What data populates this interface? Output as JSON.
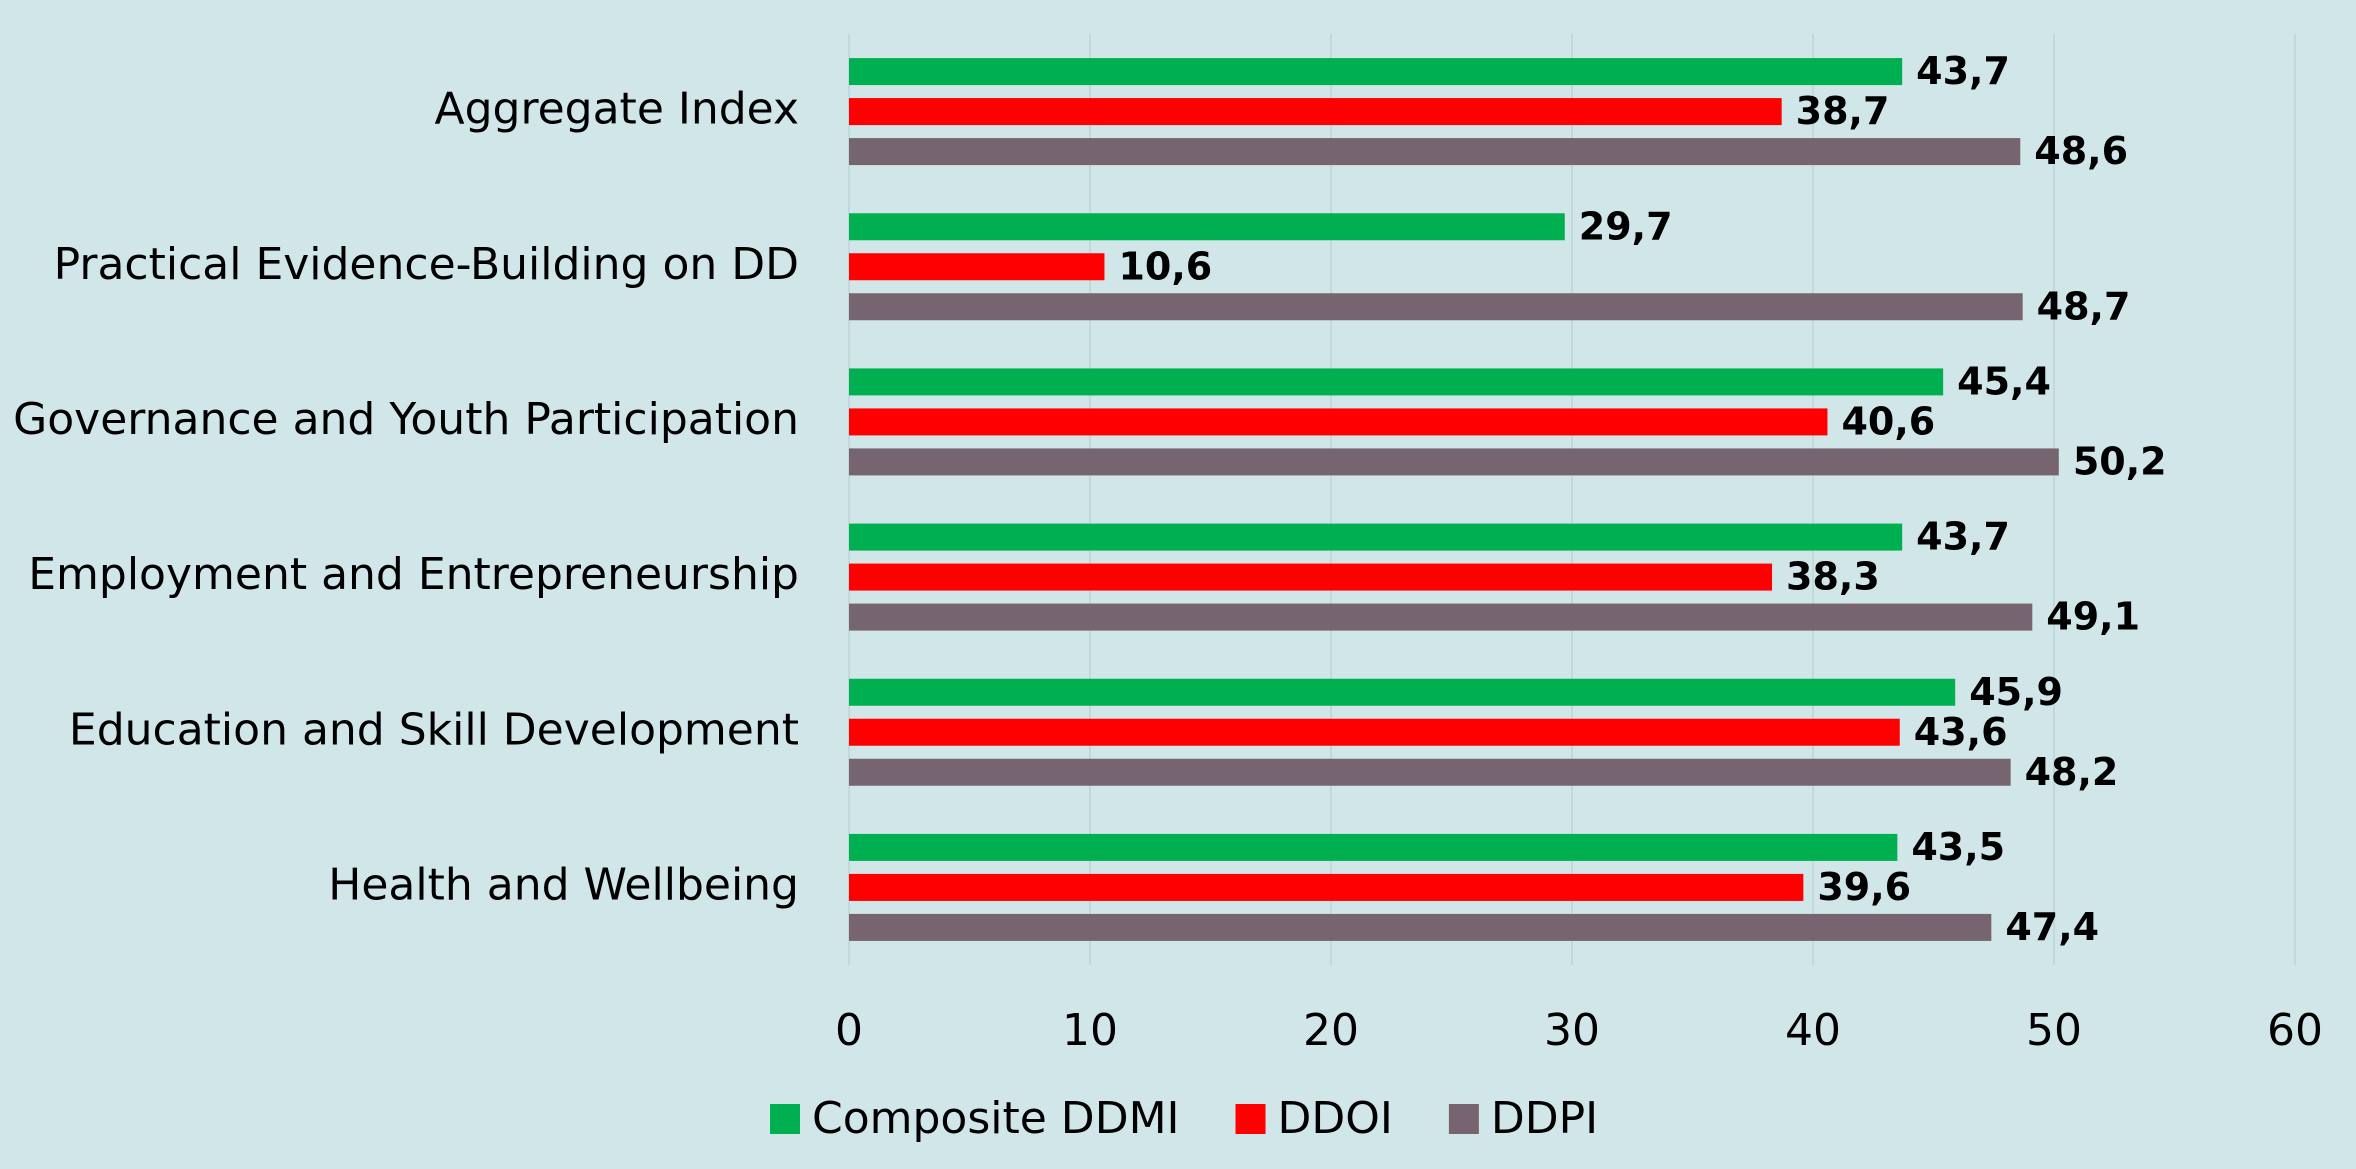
{
  "chart_data": {
    "type": "bar",
    "orientation": "horizontal",
    "categories": [
      "Aggregate Index",
      "Practical Evidence-Building on DD",
      "Governance and Youth Participation",
      "Employment and Entrepreneurship",
      "Education and Skill Development",
      "Health and Wellbeing"
    ],
    "series": [
      {
        "name": "Composite DDMI",
        "color": "#00b050",
        "values": [
          43.7,
          29.7,
          45.4,
          43.7,
          45.9,
          43.5
        ],
        "value_labels": [
          "43,7",
          "29,7",
          "45,4",
          "43,7",
          "45,9",
          "43,5"
        ]
      },
      {
        "name": "DDOI",
        "color": "#ff0000",
        "values": [
          38.7,
          10.6,
          40.6,
          38.3,
          43.6,
          39.6
        ],
        "value_labels": [
          "38,7",
          "10,6",
          "40,6",
          "38,3",
          "43,6",
          "39,6"
        ]
      },
      {
        "name": "DDPI",
        "color": "#76656f",
        "values": [
          48.6,
          48.7,
          50.2,
          49.1,
          48.2,
          47.4
        ],
        "value_labels": [
          "48,6",
          "48,7",
          "50,2",
          "49,1",
          "48,2",
          "47,4"
        ]
      }
    ],
    "xlim": [
      0,
      60
    ],
    "xticks": [
      0,
      10,
      20,
      30,
      40,
      50,
      60
    ],
    "grid": true,
    "legend": "bottom"
  }
}
